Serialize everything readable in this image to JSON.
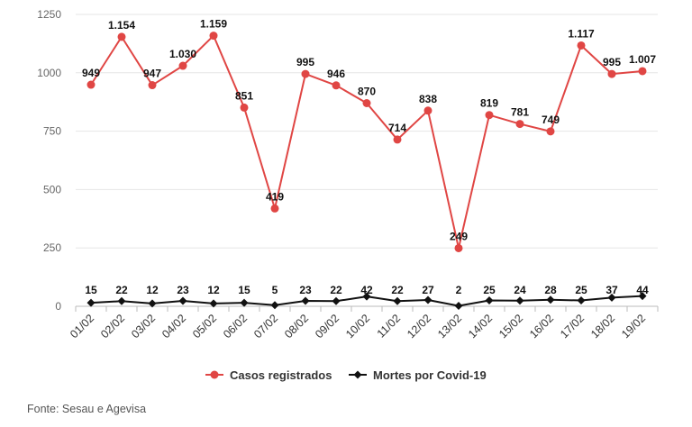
{
  "chart_data": {
    "type": "line",
    "categories": [
      "01/02",
      "02/02",
      "03/02",
      "04/02",
      "05/02",
      "06/02",
      "07/02",
      "08/02",
      "09/02",
      "10/02",
      "11/02",
      "12/02",
      "13/02",
      "14/02",
      "15/02",
      "16/02",
      "17/02",
      "18/02",
      "19/02"
    ],
    "series": [
      {
        "name": "Casos registrados",
        "color": "#e04644",
        "marker": "circle",
        "values": [
          949,
          1154,
          947,
          1030,
          1159,
          851,
          419,
          995,
          946,
          870,
          714,
          838,
          249,
          819,
          781,
          749,
          1117,
          995,
          1007
        ],
        "labels": [
          "949",
          "1.154",
          "947",
          "1.030",
          "1.159",
          "851",
          "419",
          "995",
          "946",
          "870",
          "714",
          "838",
          "249",
          "819",
          "781",
          "749",
          "1.117",
          "995",
          "1.007"
        ]
      },
      {
        "name": "Mortes por Covid-19",
        "color": "#111111",
        "marker": "diamond",
        "values": [
          15,
          22,
          12,
          23,
          12,
          15,
          5,
          23,
          22,
          42,
          22,
          27,
          2,
          25,
          24,
          28,
          25,
          37,
          44
        ],
        "labels": [
          "15",
          "22",
          "12",
          "23",
          "12",
          "15",
          "5",
          "23",
          "22",
          "42",
          "22",
          "27",
          "2",
          "25",
          "24",
          "28",
          "25",
          "37",
          "44"
        ]
      }
    ],
    "yticks": [
      "0",
      "250",
      "500",
      "750",
      "1000",
      "1250"
    ],
    "ytick_values": [
      0,
      250,
      500,
      750,
      1000,
      1250
    ],
    "ylim": [
      0,
      1250
    ],
    "grid": true,
    "legend_position": "bottom"
  },
  "source_text": "Fonte: Sesau e Agevisa"
}
